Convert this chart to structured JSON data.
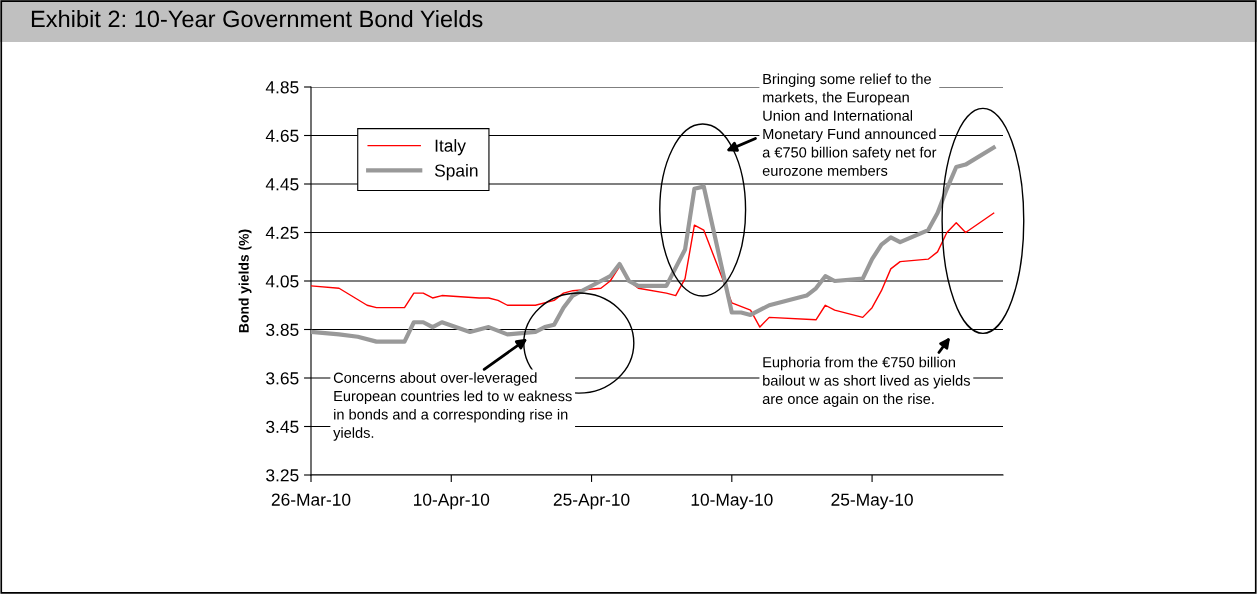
{
  "chart_data": {
    "type": "line",
    "title": "Exhibit 2: 10-Year Government Bond Yields",
    "ylabel": "Bond yields (%)",
    "series": [
      {
        "name": "Italy",
        "color": "#ff0000",
        "x": [
          "2010-03-26",
          "2010-03-29",
          "2010-04-01",
          "2010-04-02",
          "2010-04-05",
          "2010-04-06",
          "2010-04-07",
          "2010-04-08",
          "2010-04-09",
          "2010-04-13",
          "2010-04-14",
          "2010-04-15",
          "2010-04-16",
          "2010-04-19",
          "2010-04-21",
          "2010-04-22",
          "2010-04-23",
          "2010-04-26",
          "2010-04-27",
          "2010-04-28",
          "2010-04-29",
          "2010-04-30",
          "2010-05-03",
          "2010-05-04",
          "2010-05-05",
          "2010-05-06",
          "2010-05-07",
          "2010-05-10",
          "2010-05-12",
          "2010-05-13",
          "2010-05-14",
          "2010-05-19",
          "2010-05-20",
          "2010-05-21",
          "2010-05-24",
          "2010-05-25",
          "2010-05-26",
          "2010-05-27",
          "2010-05-28",
          "2010-05-31",
          "2010-06-01",
          "2010-06-02",
          "2010-06-03",
          "2010-06-04",
          "2010-06-07"
        ],
        "values": [
          4.03,
          4.02,
          3.95,
          3.94,
          3.94,
          4.0,
          4.0,
          3.98,
          3.99,
          3.98,
          3.98,
          3.97,
          3.95,
          3.95,
          3.97,
          4.0,
          4.01,
          4.02,
          4.05,
          4.11,
          4.05,
          4.02,
          4.0,
          3.99,
          4.06,
          4.28,
          4.26,
          3.96,
          3.93,
          3.86,
          3.9,
          3.89,
          3.95,
          3.93,
          3.9,
          3.94,
          4.01,
          4.1,
          4.13,
          4.14,
          4.17,
          4.25,
          4.29,
          4.25,
          4.33
        ]
      },
      {
        "name": "Spain",
        "color": "#999999",
        "x": [
          "2010-03-26",
          "2010-03-29",
          "2010-03-31",
          "2010-04-02",
          "2010-04-05",
          "2010-04-06",
          "2010-04-07",
          "2010-04-08",
          "2010-04-09",
          "2010-04-12",
          "2010-04-13",
          "2010-04-14",
          "2010-04-16",
          "2010-04-19",
          "2010-04-20",
          "2010-04-21",
          "2010-04-22",
          "2010-04-23",
          "2010-04-26",
          "2010-04-27",
          "2010-04-28",
          "2010-04-29",
          "2010-04-30",
          "2010-05-03",
          "2010-05-05",
          "2010-05-06",
          "2010-05-07",
          "2010-05-10",
          "2010-05-11",
          "2010-05-12",
          "2010-05-14",
          "2010-05-18",
          "2010-05-19",
          "2010-05-20",
          "2010-05-21",
          "2010-05-24",
          "2010-05-25",
          "2010-05-26",
          "2010-05-27",
          "2010-05-28",
          "2010-05-31",
          "2010-06-01",
          "2010-06-02",
          "2010-06-03",
          "2010-06-04",
          "2010-06-07"
        ],
        "values": [
          3.84,
          3.83,
          3.82,
          3.8,
          3.8,
          3.88,
          3.88,
          3.86,
          3.88,
          3.84,
          3.85,
          3.86,
          3.83,
          3.84,
          3.86,
          3.87,
          3.94,
          3.99,
          4.05,
          4.07,
          4.12,
          4.05,
          4.03,
          4.03,
          4.18,
          4.43,
          4.44,
          3.92,
          3.92,
          3.91,
          3.95,
          3.99,
          4.02,
          4.07,
          4.05,
          4.06,
          4.14,
          4.2,
          4.23,
          4.21,
          4.26,
          4.33,
          4.43,
          4.52,
          4.53,
          4.6
        ]
      }
    ],
    "xlim": [
      "2010-03-26",
      "2010-06-08"
    ],
    "xticks": [
      {
        "value": "2010-03-26",
        "label": "26-Mar-10"
      },
      {
        "value": "2010-04-10",
        "label": "10-Apr-10"
      },
      {
        "value": "2010-04-25",
        "label": "25-Apr-10"
      },
      {
        "value": "2010-05-10",
        "label": "10-May-10"
      },
      {
        "value": "2010-05-25",
        "label": "25-May-10"
      }
    ],
    "ylim": [
      3.25,
      4.85
    ],
    "yticks": [
      3.25,
      3.45,
      3.65,
      3.85,
      4.05,
      4.25,
      4.45,
      4.65,
      4.85
    ],
    "grid": "y",
    "legend": "top left",
    "annotations": [
      "Concerns about over-leveraged\nEuropean countries led to w eakness\nin bonds and a corresponding rise in\nyields.",
      "Bringing some relief to the\nmarkets, the European\nUnion and International\nMonetary Fund announced\na €750 billion safety net for\neurozone members",
      "Euphoria from the €750 billion\nbailout w as short lived as yields\nare once again on the rise."
    ]
  }
}
